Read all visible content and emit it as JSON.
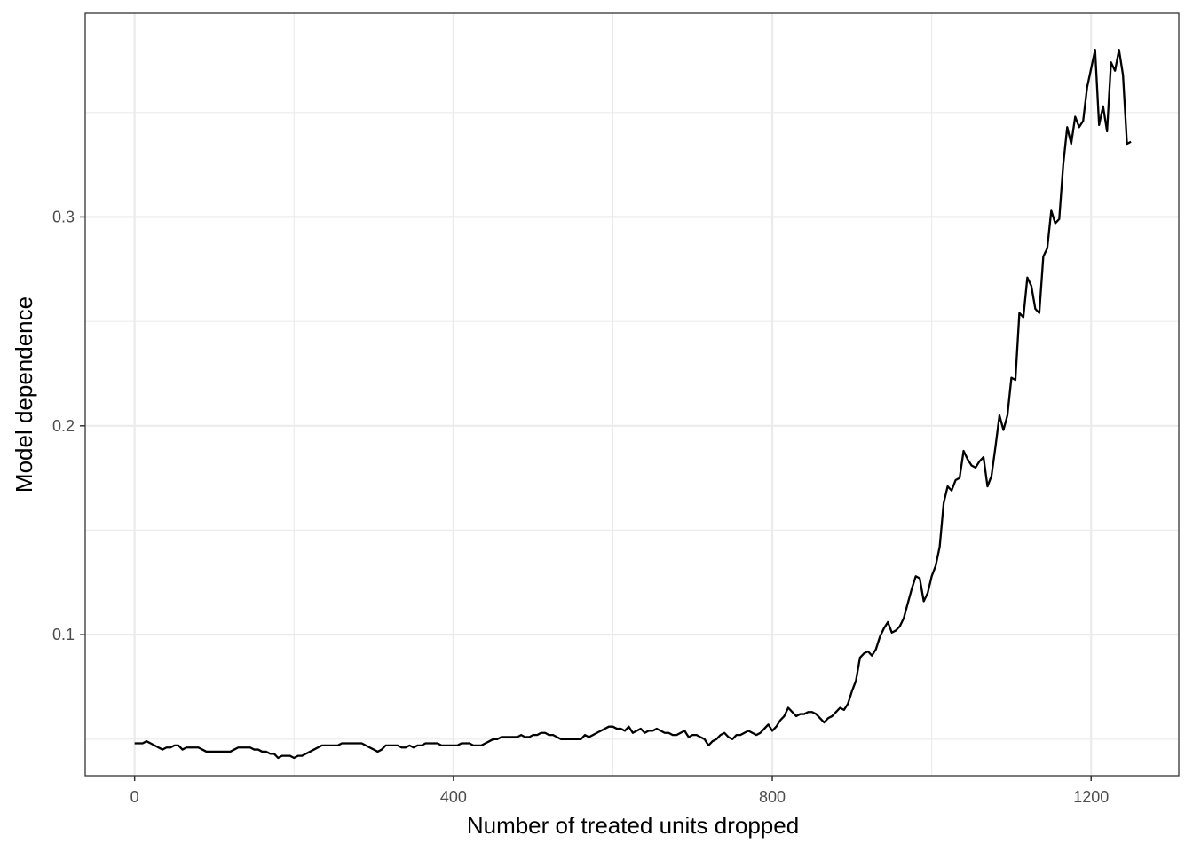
{
  "chart_data": {
    "type": "line",
    "title": "",
    "xlabel": "Number of treated units dropped",
    "ylabel": "Model dependence",
    "xlim": [
      -62,
      1310
    ],
    "ylim": [
      0.0325,
      0.3975
    ],
    "x_ticks": [
      0,
      400,
      800,
      1200
    ],
    "x_tick_labels": [
      "0",
      "400",
      "800",
      "1200"
    ],
    "y_ticks": [
      0.1,
      0.2,
      0.3
    ],
    "y_tick_labels": [
      "0.1",
      "0.2",
      "0.3"
    ],
    "x_minor_ticks": [
      200,
      600,
      1000
    ],
    "y_minor_ticks": [
      0.05,
      0.15,
      0.25,
      0.35
    ],
    "grid": true,
    "legend": "none",
    "line_color": "#000000",
    "series": [
      {
        "x": [
          0,
          5,
          10,
          15,
          20,
          25,
          30,
          35,
          40,
          45,
          50,
          55,
          60,
          65,
          70,
          75,
          80,
          85,
          90,
          95,
          100,
          105,
          110,
          115,
          120,
          125,
          130,
          135,
          140,
          145,
          150,
          155,
          160,
          165,
          170,
          175,
          180,
          185,
          190,
          195,
          200,
          205,
          210,
          215,
          220,
          225,
          230,
          235,
          240,
          245,
          250,
          255,
          260,
          265,
          270,
          275,
          280,
          285,
          290,
          295,
          300,
          305,
          310,
          315,
          320,
          325,
          330,
          335,
          340,
          345,
          350,
          355,
          360,
          365,
          370,
          375,
          380,
          385,
          390,
          395,
          400,
          405,
          410,
          415,
          420,
          425,
          430,
          435,
          440,
          445,
          450,
          455,
          460,
          465,
          470,
          475,
          480,
          485,
          490,
          495,
          500,
          505,
          510,
          515,
          520,
          525,
          530,
          535,
          540,
          545,
          550,
          555,
          560,
          565,
          570,
          575,
          580,
          585,
          590,
          595,
          600,
          605,
          610,
          615,
          620,
          625,
          630,
          635,
          640,
          645,
          650,
          655,
          660,
          665,
          670,
          675,
          680,
          685,
          690,
          695,
          700,
          705,
          710,
          715,
          720,
          725,
          730,
          735,
          740,
          745,
          750,
          755,
          760,
          765,
          770,
          775,
          780,
          785,
          790,
          795,
          800,
          805,
          810,
          815,
          820,
          825,
          830,
          835,
          840,
          845,
          850,
          855,
          860,
          865,
          870,
          875,
          880,
          885,
          890,
          895,
          900,
          905,
          910,
          915,
          920,
          925,
          930,
          935,
          940,
          945,
          950,
          955,
          960,
          965,
          970,
          975,
          980,
          985,
          990,
          995,
          1000,
          1005,
          1010,
          1015,
          1020,
          1025,
          1030,
          1035,
          1040,
          1045,
          1050,
          1055,
          1060,
          1065,
          1070,
          1075,
          1080,
          1085,
          1090,
          1095,
          1100,
          1105,
          1110,
          1115,
          1120,
          1125,
          1130,
          1135,
          1140,
          1145,
          1150,
          1155,
          1160,
          1165,
          1170,
          1175,
          1180,
          1185,
          1190,
          1195,
          1200,
          1205,
          1210,
          1215,
          1220,
          1225,
          1230,
          1235,
          1240,
          1245,
          1250
        ],
        "y": [
          0.048,
          0.048,
          0.048,
          0.049,
          0.048,
          0.047,
          0.046,
          0.045,
          0.046,
          0.046,
          0.047,
          0.047,
          0.045,
          0.046,
          0.046,
          0.046,
          0.046,
          0.045,
          0.044,
          0.044,
          0.044,
          0.044,
          0.044,
          0.044,
          0.044,
          0.045,
          0.046,
          0.046,
          0.046,
          0.046,
          0.045,
          0.045,
          0.044,
          0.044,
          0.043,
          0.043,
          0.041,
          0.042,
          0.042,
          0.042,
          0.041,
          0.042,
          0.042,
          0.043,
          0.044,
          0.045,
          0.046,
          0.047,
          0.047,
          0.047,
          0.047,
          0.047,
          0.048,
          0.048,
          0.048,
          0.048,
          0.048,
          0.048,
          0.047,
          0.046,
          0.045,
          0.044,
          0.045,
          0.047,
          0.047,
          0.047,
          0.047,
          0.046,
          0.046,
          0.047,
          0.046,
          0.047,
          0.047,
          0.048,
          0.048,
          0.048,
          0.048,
          0.047,
          0.047,
          0.047,
          0.047,
          0.047,
          0.048,
          0.048,
          0.048,
          0.047,
          0.047,
          0.047,
          0.048,
          0.049,
          0.05,
          0.05,
          0.051,
          0.051,
          0.051,
          0.051,
          0.051,
          0.052,
          0.051,
          0.051,
          0.052,
          0.052,
          0.053,
          0.053,
          0.052,
          0.052,
          0.051,
          0.05,
          0.05,
          0.05,
          0.05,
          0.05,
          0.05,
          0.052,
          0.051,
          0.052,
          0.053,
          0.054,
          0.055,
          0.056,
          0.056,
          0.055,
          0.055,
          0.054,
          0.056,
          0.053,
          0.054,
          0.055,
          0.053,
          0.054,
          0.054,
          0.055,
          0.054,
          0.053,
          0.053,
          0.052,
          0.052,
          0.053,
          0.054,
          0.051,
          0.052,
          0.052,
          0.051,
          0.05,
          0.047,
          0.049,
          0.05,
          0.052,
          0.053,
          0.051,
          0.05,
          0.052,
          0.052,
          0.053,
          0.054,
          0.053,
          0.052,
          0.053,
          0.055,
          0.057,
          0.054,
          0.056,
          0.059,
          0.061,
          0.065,
          0.063,
          0.061,
          0.062,
          0.062,
          0.063,
          0.063,
          0.062,
          0.06,
          0.058,
          0.06,
          0.061,
          0.063,
          0.065,
          0.064,
          0.067,
          0.073,
          0.078,
          0.089,
          0.091,
          0.092,
          0.09,
          0.093,
          0.099,
          0.103,
          0.106,
          0.101,
          0.102,
          0.104,
          0.108,
          0.115,
          0.122,
          0.128,
          0.127,
          0.116,
          0.12,
          0.128,
          0.133,
          0.142,
          0.163,
          0.171,
          0.169,
          0.174,
          0.175,
          0.188,
          0.184,
          0.181,
          0.18,
          0.183,
          0.185,
          0.171,
          0.176,
          0.19,
          0.205,
          0.198,
          0.205,
          0.223,
          0.222,
          0.254,
          0.252,
          0.271,
          0.267,
          0.256,
          0.254,
          0.281,
          0.285,
          0.303,
          0.297,
          0.299,
          0.325,
          0.343,
          0.335,
          0.348,
          0.343,
          0.346,
          0.362,
          0.371,
          0.38,
          0.344,
          0.353,
          0.341,
          0.374,
          0.37,
          0.38,
          0.368,
          0.335,
          0.336
        ]
      }
    ]
  }
}
